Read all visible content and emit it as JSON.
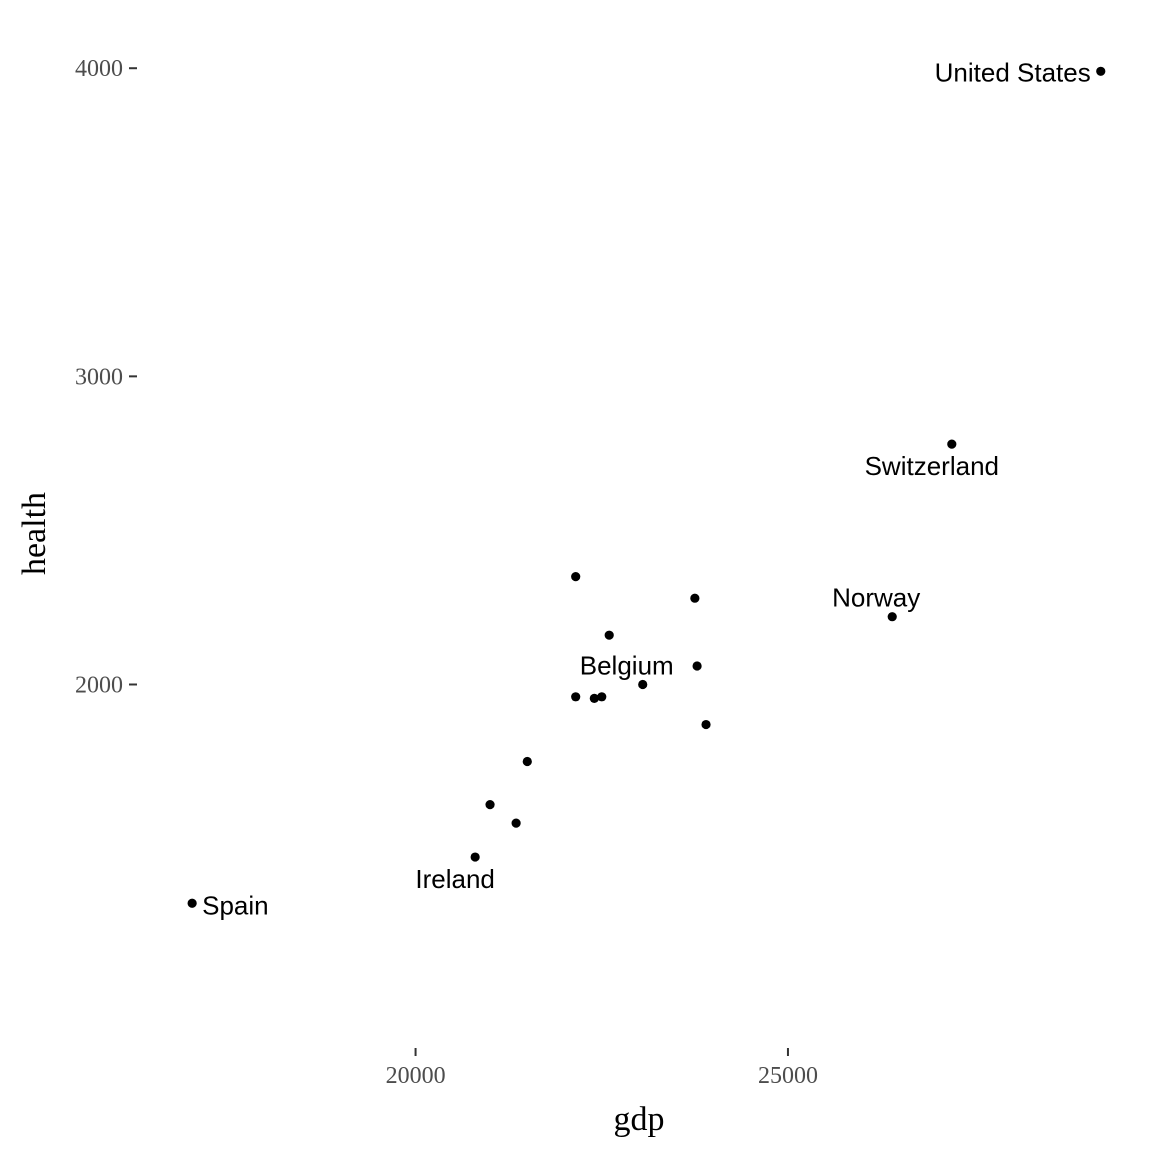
{
  "chart_data": {
    "type": "scatter",
    "xlabel": "gdp",
    "ylabel": "health",
    "xlim": [
      16300,
      29700
    ],
    "ylim": [
      830,
      4150
    ],
    "x_ticks": [
      {
        "value": 20000,
        "label": "20000"
      },
      {
        "value": 25000,
        "label": "25000"
      }
    ],
    "y_ticks": [
      {
        "value": 2000,
        "label": "2000"
      },
      {
        "value": 3000,
        "label": "3000"
      },
      {
        "value": 4000,
        "label": "4000"
      }
    ],
    "grid": false,
    "point_color": "#000000",
    "points": [
      {
        "x": 29200,
        "y": 3990,
        "label": "United States",
        "label_anchor": "end"
      },
      {
        "x": 27200,
        "y": 2780,
        "label": "Switzerland",
        "label_anchor": "below"
      },
      {
        "x": 26400,
        "y": 2220,
        "label": "Norway",
        "label_anchor": "above"
      },
      {
        "x": 23050,
        "y": 2000,
        "label": "Belgium",
        "label_anchor": "above"
      },
      {
        "x": 20800,
        "y": 1440,
        "label": "Ireland",
        "label_anchor": "below"
      },
      {
        "x": 17000,
        "y": 1290,
        "label": "Spain",
        "label_anchor": "start"
      },
      {
        "x": 22150,
        "y": 2350,
        "label": ""
      },
      {
        "x": 23750,
        "y": 2280,
        "label": ""
      },
      {
        "x": 22600,
        "y": 2160,
        "label": ""
      },
      {
        "x": 23780,
        "y": 2060,
        "label": ""
      },
      {
        "x": 22150,
        "y": 1960,
        "label": ""
      },
      {
        "x": 22400,
        "y": 1955,
        "label": ""
      },
      {
        "x": 22500,
        "y": 1960,
        "label": ""
      },
      {
        "x": 23900,
        "y": 1870,
        "label": ""
      },
      {
        "x": 21500,
        "y": 1750,
        "label": ""
      },
      {
        "x": 21000,
        "y": 1610,
        "label": ""
      },
      {
        "x": 21350,
        "y": 1550,
        "label": ""
      }
    ]
  }
}
